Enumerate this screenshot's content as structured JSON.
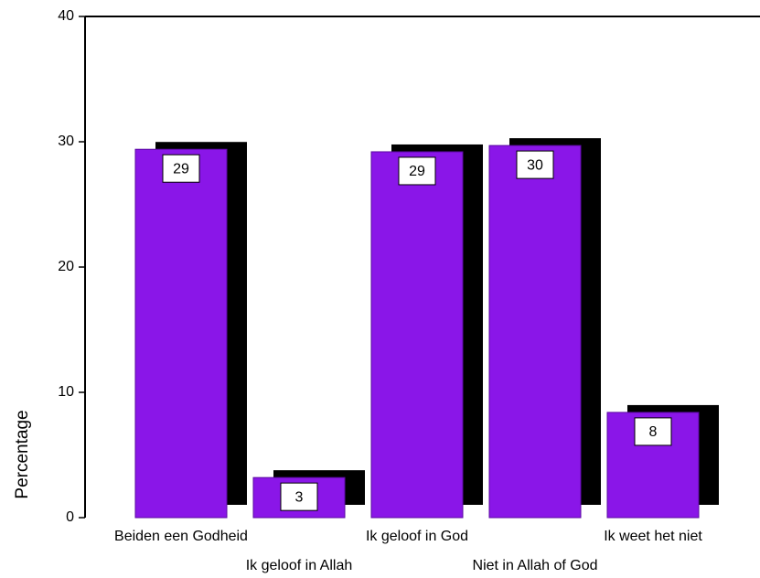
{
  "chart_data": {
    "type": "bar",
    "categories": [
      "Beiden een Godheid",
      "Ik geloof in Allah",
      "Ik geloof in God",
      "Niet in Allah of God",
      "Ik weet het niet"
    ],
    "values": [
      29.4,
      3.2,
      29.2,
      29.7,
      8.4
    ],
    "value_labels": [
      "29",
      "3",
      "29",
      "30",
      "8"
    ],
    "color": "#8a16e8",
    "y_label": "Percentage",
    "ylim": [
      0,
      40
    ],
    "yticks": [
      0,
      10,
      20,
      30,
      40
    ],
    "grid": false
  }
}
